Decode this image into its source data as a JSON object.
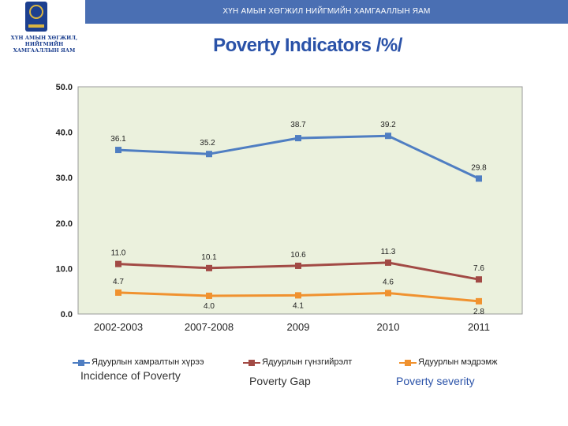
{
  "header": {
    "ministry": "ХҮН АМЫН ХӨГЖИЛ НИЙГМИЙН ХАМГААЛЛЫН ЯАМ",
    "logo_text_line1": "ХҮН АМЫН ХӨГЖИЛ,",
    "logo_text_line2": "НИЙГМИЙН ХАМГААЛЛЫН ЯАМ"
  },
  "legend": [
    {
      "mn": "Ядуурлын хамралтын хүрээ",
      "en": "Incidence of Poverty"
    },
    {
      "mn": "Ядуурлын гүнзгийрэлт",
      "en": "Poverty Gap"
    },
    {
      "mn": "Ядуурлын мэдрэмж",
      "en": "Poverty severity"
    }
  ],
  "colors": {
    "incidence": "#4f7ec2",
    "gap": "#a24a45",
    "severity": "#f0922f",
    "plot_bg": "#ebf1dd",
    "header_bg": "#4a6fb3",
    "title": "#2a52a8"
  },
  "chart_data": {
    "type": "line",
    "title": "Poverty Indicators /%/",
    "categories": [
      "2002-2003",
      "2007-2008",
      "2009",
      "2010",
      "2011"
    ],
    "ylim": [
      0,
      50
    ],
    "yticks": [
      "0.0",
      "10.0",
      "20.0",
      "30.0",
      "40.0",
      "50.0"
    ],
    "grid": false,
    "legend_position": "bottom",
    "series": [
      {
        "name": "Ядуурлын хамралтын хүрээ",
        "values": [
          36.1,
          35.2,
          38.7,
          39.2,
          29.8
        ],
        "labels": [
          "36.1",
          "35.2",
          "38.7",
          "39.2",
          "29.8"
        ]
      },
      {
        "name": "Ядуурлын гүнзгийрэлт",
        "values": [
          11.0,
          10.1,
          10.6,
          11.3,
          7.6
        ],
        "labels": [
          "11.0",
          "10.1",
          "10.6",
          "11.3",
          "7.6"
        ]
      },
      {
        "name": "Ядуурлын мэдрэмж",
        "values": [
          4.7,
          4.0,
          4.1,
          4.6,
          2.8
        ],
        "labels": [
          "4.7",
          "4.0",
          "4.1",
          "4.6",
          "2.8"
        ]
      }
    ]
  }
}
